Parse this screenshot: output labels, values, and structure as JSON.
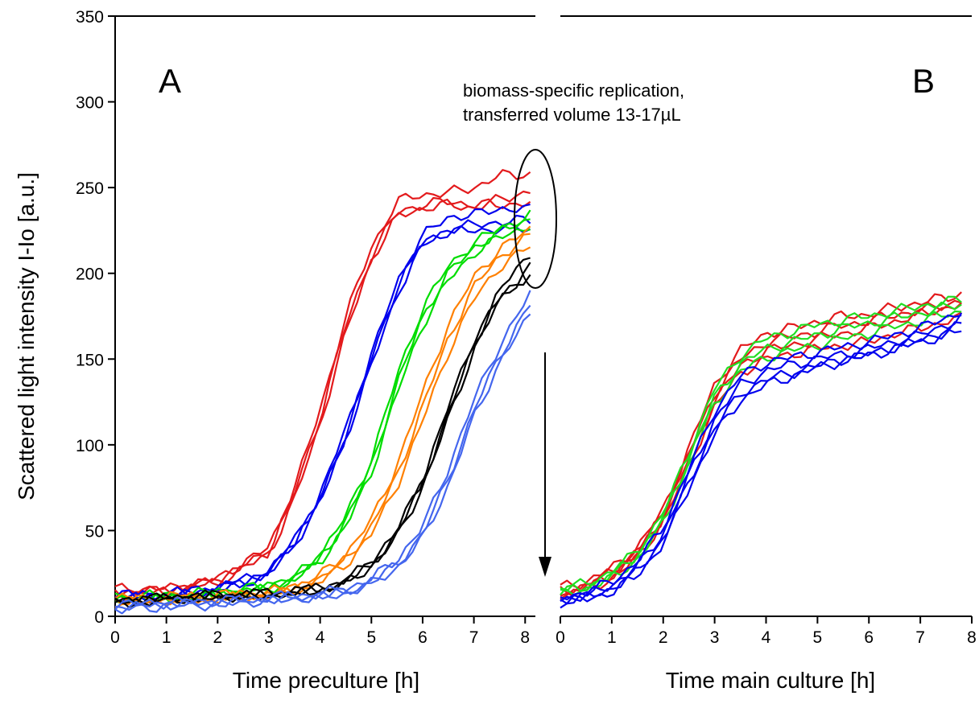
{
  "chart_data": [
    {
      "type": "line",
      "panel_label": "A",
      "xlabel": "Time preculture    [h]",
      "ylabel": "Scattered light intensity I-Io    [a.u.]",
      "xlim": [
        0,
        8.2
      ],
      "ylim": [
        0,
        350
      ],
      "x_ticks": [
        "0",
        "1",
        "2",
        "3",
        "4",
        "5",
        "6",
        "7",
        "8"
      ],
      "y_ticks": [
        "0",
        "50",
        "100",
        "150",
        "200",
        "250",
        "300",
        "350"
      ],
      "annotation": [
        "biomass-specific replication,",
        "transferred volume 13-17µL"
      ],
      "series": [
        {
          "color": "#e31a1c",
          "x": [
            0,
            1,
            2,
            3,
            3.5,
            4,
            4.5,
            5,
            5.5,
            6,
            6.5,
            7,
            7.5,
            8.1
          ],
          "y": [
            16,
            16,
            22,
            40,
            75,
            120,
            175,
            215,
            242,
            246,
            247,
            250,
            257,
            258
          ]
        },
        {
          "color": "#e31a1c",
          "x": [
            0,
            1,
            2,
            3,
            3.5,
            4,
            4.5,
            5,
            5.5,
            6,
            6.5,
            7,
            7.5,
            8.1
          ],
          "y": [
            13,
            14,
            20,
            36,
            68,
            112,
            165,
            208,
            233,
            238,
            240,
            238,
            243,
            248
          ]
        },
        {
          "color": "#e31a1c",
          "x": [
            0,
            1,
            2,
            3,
            3.5,
            4,
            4.5,
            5,
            5.5,
            6,
            6.5,
            7,
            7.5,
            8.1
          ],
          "y": [
            14,
            15,
            21,
            38,
            72,
            116,
            170,
            210,
            236,
            240,
            242,
            240,
            240,
            241
          ]
        },
        {
          "color": "#0000ee",
          "x": [
            0,
            1,
            2,
            3,
            3.5,
            4,
            4.5,
            5,
            5.5,
            6,
            6.5,
            7,
            7.5,
            8.1
          ],
          "y": [
            11,
            12,
            17,
            26,
            45,
            70,
            110,
            152,
            195,
            222,
            233,
            234,
            238,
            237
          ]
        },
        {
          "color": "#0000ee",
          "x": [
            0,
            1,
            2,
            3,
            3.5,
            4,
            4.5,
            5,
            5.5,
            6,
            6.5,
            7,
            7.5,
            8.1
          ],
          "y": [
            10,
            11,
            15,
            24,
            42,
            66,
            104,
            146,
            188,
            216,
            226,
            228,
            230,
            231
          ]
        },
        {
          "color": "#0000ee",
          "x": [
            0,
            1,
            2,
            3,
            3.5,
            4,
            4.5,
            5,
            5.5,
            6,
            6.5,
            7,
            7.5,
            8.1
          ],
          "y": [
            12,
            13,
            16,
            25,
            44,
            68,
            106,
            150,
            192,
            219,
            224,
            225,
            226,
            226
          ]
        },
        {
          "color": "#00dd00",
          "x": [
            0,
            1,
            2,
            3,
            3.5,
            4,
            4.5,
            5,
            5.5,
            6,
            6.5,
            7,
            7.5,
            8.1
          ],
          "y": [
            10,
            11,
            13,
            17,
            22,
            34,
            55,
            88,
            135,
            175,
            200,
            215,
            224,
            232
          ]
        },
        {
          "color": "#00dd00",
          "x": [
            0,
            1,
            2,
            3,
            3.5,
            4,
            4.5,
            5,
            5.5,
            6,
            6.5,
            7,
            7.5,
            8.1
          ],
          "y": [
            9,
            10,
            12,
            16,
            21,
            32,
            52,
            84,
            130,
            170,
            196,
            212,
            221,
            228
          ]
        },
        {
          "color": "#00dd00",
          "x": [
            0,
            1,
            2,
            3,
            3.5,
            4,
            4.5,
            5,
            5.5,
            6,
            6.5,
            7,
            7.5,
            8.1
          ],
          "y": [
            11,
            12,
            14,
            18,
            23,
            36,
            58,
            92,
            140,
            180,
            204,
            218,
            226,
            234
          ]
        },
        {
          "color": "#ff8000",
          "x": [
            0,
            1,
            2,
            3,
            3.5,
            4,
            4.5,
            5,
            5.5,
            6,
            6.5,
            7,
            7.5,
            8.1
          ],
          "y": [
            9,
            10,
            11,
            13,
            16,
            22,
            33,
            52,
            82,
            122,
            162,
            192,
            210,
            222
          ]
        },
        {
          "color": "#ff8000",
          "x": [
            0,
            1,
            2,
            3,
            3.5,
            4,
            4.5,
            5,
            5.5,
            6,
            6.5,
            7,
            7.5,
            8.1
          ],
          "y": [
            8,
            9,
            10,
            12,
            15,
            20,
            30,
            48,
            76,
            114,
            154,
            185,
            204,
            216
          ]
        },
        {
          "color": "#ff8000",
          "x": [
            0,
            1,
            2,
            3,
            3.5,
            4,
            4.5,
            5,
            5.5,
            6,
            6.5,
            7,
            7.5,
            8.1
          ],
          "y": [
            10,
            11,
            12,
            14,
            17,
            24,
            36,
            56,
            88,
            130,
            170,
            198,
            214,
            226
          ]
        },
        {
          "color": "#000000",
          "x": [
            0,
            1,
            2,
            3,
            3.5,
            4,
            4.5,
            5,
            5.5,
            6,
            6.5,
            7,
            7.5,
            8.1
          ],
          "y": [
            8,
            10,
            12,
            13,
            14,
            16,
            20,
            30,
            48,
            78,
            118,
            158,
            190,
            212
          ]
        },
        {
          "color": "#000000",
          "x": [
            0,
            1,
            2,
            3,
            3.5,
            4,
            4.5,
            5,
            5.5,
            6,
            6.5,
            7,
            7.5,
            8.1
          ],
          "y": [
            9,
            11,
            12,
            13,
            14,
            16,
            21,
            32,
            50,
            80,
            122,
            162,
            186,
            200
          ]
        },
        {
          "color": "#000000",
          "x": [
            0,
            1,
            2,
            3,
            3.5,
            4,
            4.5,
            5,
            5.5,
            6,
            6.5,
            7,
            7.5,
            8.1
          ],
          "y": [
            8,
            10,
            11,
            12,
            14,
            15,
            19,
            29,
            46,
            75,
            115,
            155,
            184,
            204
          ]
        },
        {
          "color": "#4466ee",
          "x": [
            0,
            1,
            2,
            3,
            3.5,
            4,
            4.5,
            5,
            5.5,
            6,
            6.5,
            7,
            7.5,
            8.1
          ],
          "y": [
            5,
            7,
            8,
            10,
            11,
            12,
            14,
            20,
            30,
            48,
            80,
            120,
            152,
            182
          ]
        },
        {
          "color": "#4466ee",
          "x": [
            0,
            1,
            2,
            3,
            3.5,
            4,
            4.5,
            5,
            5.5,
            6,
            6.5,
            7,
            7.5,
            8.1
          ],
          "y": [
            7,
            8,
            9,
            11,
            12,
            13,
            16,
            22,
            33,
            52,
            86,
            126,
            158,
            188
          ]
        },
        {
          "color": "#4466ee",
          "x": [
            0,
            1,
            2,
            3,
            3.5,
            4,
            4.5,
            5,
            5.5,
            6,
            6.5,
            7,
            7.5,
            8.1
          ],
          "y": [
            4,
            6,
            7,
            9,
            10,
            11,
            13,
            19,
            28,
            45,
            76,
            116,
            148,
            176
          ]
        }
      ]
    },
    {
      "type": "line",
      "panel_label": "B",
      "xlabel": "Time main culture    [h]",
      "ylabel": "",
      "xlim": [
        0,
        8
      ],
      "ylim": [
        0,
        350
      ],
      "x_ticks": [
        "0",
        "1",
        "2",
        "3",
        "4",
        "5",
        "6",
        "7",
        "8"
      ],
      "series": [
        {
          "color": "#e31a1c",
          "x": [
            0,
            0.5,
            1,
            1.5,
            2,
            2.5,
            3,
            3.5,
            4,
            4.5,
            5,
            5.5,
            6,
            6.5,
            7,
            7.5,
            7.8
          ],
          "y": [
            17,
            20,
            28,
            40,
            62,
            98,
            135,
            155,
            165,
            168,
            172,
            175,
            176,
            180,
            183,
            186,
            188
          ]
        },
        {
          "color": "#e31a1c",
          "x": [
            0,
            0.5,
            1,
            1.5,
            2,
            2.5,
            3,
            3.5,
            4,
            4.5,
            5,
            5.5,
            6,
            6.5,
            7,
            7.5,
            7.8
          ],
          "y": [
            15,
            18,
            26,
            38,
            60,
            95,
            130,
            150,
            160,
            163,
            166,
            170,
            172,
            176,
            178,
            182,
            184
          ]
        },
        {
          "color": "#e31a1c",
          "x": [
            0,
            0.5,
            1,
            1.5,
            2,
            2.5,
            3,
            3.5,
            4,
            4.5,
            5,
            5.5,
            6,
            6.5,
            7,
            7.5,
            7.8
          ],
          "y": [
            13,
            16,
            24,
            36,
            58,
            92,
            126,
            146,
            155,
            158,
            162,
            165,
            168,
            172,
            176,
            180,
            182
          ]
        },
        {
          "color": "#e31a1c",
          "x": [
            0,
            0.5,
            1,
            1.5,
            2,
            2.5,
            3,
            3.5,
            4,
            4.5,
            5,
            5.5,
            6,
            6.5,
            7,
            7.5,
            7.8
          ],
          "y": [
            12,
            15,
            22,
            34,
            55,
            88,
            122,
            142,
            150,
            153,
            156,
            158,
            160,
            165,
            168,
            172,
            174
          ]
        },
        {
          "color": "#22dd22",
          "x": [
            0,
            0.5,
            1,
            1.5,
            2,
            2.5,
            3,
            3.5,
            4,
            4.5,
            5,
            5.5,
            6,
            6.5,
            7,
            7.5,
            7.8
          ],
          "y": [
            16,
            19,
            26,
            38,
            60,
            96,
            133,
            152,
            162,
            166,
            170,
            173,
            175,
            178,
            181,
            183,
            185
          ]
        },
        {
          "color": "#22dd22",
          "x": [
            0,
            0.5,
            1,
            1.5,
            2,
            2.5,
            3,
            3.5,
            4,
            4.5,
            5,
            5.5,
            6,
            6.5,
            7,
            7.5,
            7.8
          ],
          "y": [
            14,
            17,
            24,
            36,
            57,
            92,
            128,
            147,
            156,
            160,
            164,
            168,
            171,
            174,
            177,
            180,
            182
          ]
        },
        {
          "color": "#22dd22",
          "x": [
            0,
            0.5,
            1,
            1.5,
            2,
            2.5,
            3,
            3.5,
            4,
            4.5,
            5,
            5.5,
            6,
            6.5,
            7,
            7.5,
            7.8
          ],
          "y": [
            13,
            16,
            22,
            33,
            54,
            88,
            124,
            143,
            151,
            155,
            158,
            162,
            165,
            169,
            172,
            176,
            178
          ]
        },
        {
          "color": "#0000ee",
          "x": [
            0,
            0.5,
            1,
            1.5,
            2,
            2.5,
            3,
            3.5,
            4,
            4.5,
            5,
            5.5,
            6,
            6.5,
            7,
            7.5,
            7.8
          ],
          "y": [
            11,
            14,
            20,
            32,
            52,
            86,
            120,
            140,
            148,
            151,
            154,
            157,
            160,
            164,
            168,
            174,
            178
          ]
        },
        {
          "color": "#0000ee",
          "x": [
            0,
            0.5,
            1,
            1.5,
            2,
            2.5,
            3,
            3.5,
            4,
            4.5,
            5,
            5.5,
            6,
            6.5,
            7,
            7.5,
            7.8
          ],
          "y": [
            10,
            12,
            18,
            29,
            48,
            82,
            115,
            135,
            143,
            147,
            150,
            153,
            156,
            160,
            164,
            170,
            174
          ]
        },
        {
          "color": "#0000ee",
          "x": [
            0,
            0.5,
            1,
            1.5,
            2,
            2.5,
            3,
            3.5,
            4,
            4.5,
            5,
            5.5,
            6,
            6.5,
            7,
            7.5,
            7.8
          ],
          "y": [
            9,
            11,
            16,
            26,
            45,
            78,
            110,
            130,
            138,
            142,
            146,
            150,
            153,
            157,
            161,
            166,
            170
          ]
        },
        {
          "color": "#0000ee",
          "x": [
            0,
            0.5,
            1,
            1.5,
            2,
            2.5,
            3,
            3.5,
            4,
            4.5,
            5,
            5.5,
            6,
            6.5,
            7,
            7.5,
            7.8
          ],
          "y": [
            8,
            10,
            14,
            24,
            42,
            75,
            106,
            126,
            135,
            140,
            145,
            149,
            152,
            156,
            160,
            164,
            167
          ]
        }
      ]
    }
  ]
}
